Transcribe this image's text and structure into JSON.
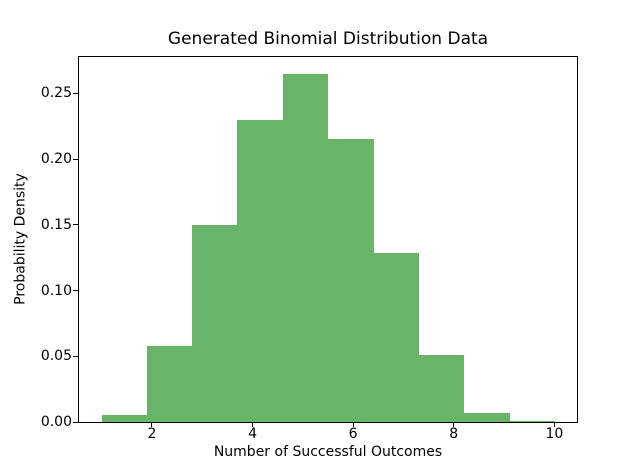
{
  "chart_data": {
    "type": "bar",
    "subtype": "histogram",
    "title": "Generated Binomial Distribution Data",
    "xlabel": "Number of Successful Outcomes",
    "ylabel": "Probability Density",
    "bin_edges": [
      1.0,
      1.9,
      2.8,
      3.7,
      4.6,
      5.5,
      6.4,
      7.3,
      8.2,
      9.1,
      10.0
    ],
    "densities": [
      0.0056,
      0.0578,
      0.15,
      0.23,
      0.2644,
      0.2156,
      0.1289,
      0.0511,
      0.0067,
      0.0011
    ],
    "xlim": [
      0.55,
      10.45
    ],
    "ylim": [
      0,
      0.2777
    ],
    "xticks": {
      "values": [
        2,
        4,
        6,
        8,
        10
      ],
      "labels": [
        "2",
        "4",
        "6",
        "8",
        "10"
      ]
    },
    "yticks": {
      "values": [
        0,
        0.05,
        0.1,
        0.15,
        0.2,
        0.25
      ],
      "labels": [
        "0.00",
        "0.05",
        "0.10",
        "0.15",
        "0.20",
        "0.25"
      ]
    },
    "bar_color": "#6ab46a",
    "background_color": "#ffffff",
    "text_color": "#000000",
    "spine_color": "#000000",
    "grid": false,
    "legend": null
  }
}
